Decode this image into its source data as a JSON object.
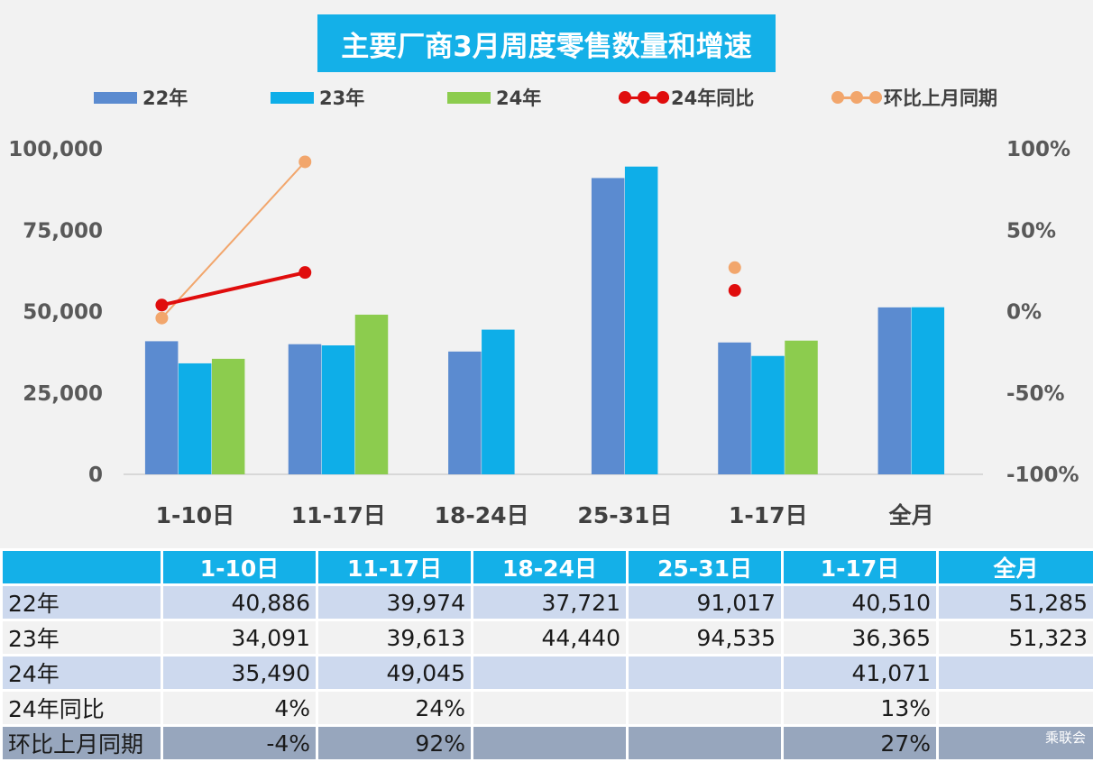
{
  "chart_data": {
    "type": "bar",
    "title": "主要厂商3月周度零售数量和增速",
    "categories": [
      "1-10日",
      "11-17日",
      "18-24日",
      "25-31日",
      "1-17日",
      "全月"
    ],
    "series": [
      {
        "name": "22年",
        "kind": "bar",
        "axis": "left",
        "values": [
          40886,
          39974,
          37721,
          91017,
          40510,
          51285
        ]
      },
      {
        "name": "23年",
        "kind": "bar",
        "axis": "left",
        "values": [
          34091,
          39613,
          44440,
          94535,
          36365,
          51323
        ]
      },
      {
        "name": "24年",
        "kind": "bar",
        "axis": "left",
        "values": [
          35490,
          49045,
          null,
          null,
          41071,
          null
        ]
      },
      {
        "name": "24年同比",
        "kind": "line",
        "axis": "right",
        "values": [
          4,
          24,
          null,
          null,
          13,
          null
        ]
      },
      {
        "name": "环比上月同期",
        "kind": "line",
        "axis": "right",
        "values": [
          -4,
          92,
          null,
          null,
          27,
          null
        ]
      }
    ],
    "y_left": {
      "min": 0,
      "max": 100000,
      "ticks": [
        "0",
        "25,000",
        "50,000",
        "75,000",
        "100,000"
      ]
    },
    "y_right": {
      "min": -100,
      "max": 100,
      "unit": "%",
      "ticks": [
        "-100%",
        "-50%",
        "0%",
        "50%",
        "100%"
      ]
    },
    "legend_position": "top",
    "grid": false
  },
  "colors": {
    "s22": "#5b8bd0",
    "s23": "#0eaee8",
    "s24": "#8ccc4e",
    "yoy": "#e00d0d",
    "mom": "#f2a66c",
    "title_bg": "#14b0e8"
  },
  "legend": [
    "22年",
    "23年",
    "24年",
    "24年同比",
    "环比上月同期"
  ],
  "table": {
    "headers": [
      "",
      "1-10日",
      "11-17日",
      "18-24日",
      "25-31日",
      "1-17日",
      "全月"
    ],
    "rows": [
      {
        "label": "22年",
        "cells": [
          "40,886",
          "39,974",
          "37,721",
          "91,017",
          "40,510",
          "51,285"
        ]
      },
      {
        "label": "23年",
        "cells": [
          "34,091",
          "39,613",
          "44,440",
          "94,535",
          "36,365",
          "51,323"
        ]
      },
      {
        "label": "24年",
        "cells": [
          "35,490",
          "49,045",
          "",
          "",
          "41,071",
          ""
        ]
      },
      {
        "label": "24年同比",
        "cells": [
          "4%",
          "24%",
          "",
          "",
          "13%",
          ""
        ]
      },
      {
        "label": "环比上月同期",
        "cells": [
          "-4%",
          "92%",
          "",
          "",
          "27%",
          ""
        ]
      }
    ]
  },
  "watermark": "乘联会"
}
